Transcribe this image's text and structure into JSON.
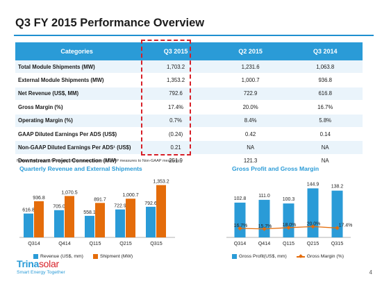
{
  "title": "Q3 FY 2015 Performance Overview",
  "table": {
    "headers": [
      "Categories",
      "Q3 2015",
      "Q2 2015",
      "Q3 2014"
    ],
    "rows": [
      [
        "Total Module Shipments (MW)",
        "1,703.2",
        "1,231.6",
        "1,063.8"
      ],
      [
        "External Module Shipments (MW)",
        "1,353.2",
        "1,000.7",
        "936.8"
      ],
      [
        "Net Revenue (US$, MM)",
        "792.6",
        "722.9",
        "616.8"
      ],
      [
        "Gross Margin (%)",
        "17.4%",
        "20.0%",
        "16.7%"
      ],
      [
        "Operating Margin  (%)",
        "0.7%",
        "8.4%",
        "5.8%"
      ],
      [
        "GAAP Diluted Earnings Per ADS (US$)",
        "(0.24)",
        "0.42",
        "0.14"
      ],
      [
        "Non-GAAP Diluted Earnings Per ADS¹ (US$)",
        "0.21",
        "NA",
        "NA"
      ],
      [
        "Downstream Project Connection (MW)",
        "251.9",
        "121.3",
        "NA"
      ]
    ]
  },
  "footnote": "Notes¹: See page 3 for details of the reconciliation of GAAP measures to Non-GAAP measures.",
  "chart_data": [
    {
      "type": "bar",
      "title": "Quarterly Revenue and External Shipments",
      "categories": [
        "Q314",
        "Q414",
        "Q115",
        "Q215",
        "Q315"
      ],
      "series": [
        {
          "name": "Revenue (US$, mm)",
          "values": [
            616.8,
            705.0,
            558.1,
            722.9,
            792.6
          ],
          "labels": [
            "616.8",
            "705.0",
            "558.1",
            "722.9",
            "792.6"
          ],
          "color": "#2a9bd7"
        },
        {
          "name": "Shipment (MW)",
          "values": [
            936.8,
            1070.5,
            891.7,
            1000.7,
            1353.2
          ],
          "labels": [
            "936.8",
            "1,070.5",
            "891.7",
            "1,000.7",
            "1,353.2"
          ],
          "color": "#e46c0a"
        }
      ],
      "legend": "bottom"
    },
    {
      "type": "bar",
      "title": "Gross Profit and Gross Margin",
      "categories": [
        "Q314",
        "Q414",
        "Q115",
        "Q215",
        "Q315"
      ],
      "series": [
        {
          "name": "Gross Profit(US$, mm)",
          "values": [
            102.8,
            111.0,
            100.3,
            144.9,
            138.2
          ],
          "labels": [
            "102.8",
            "111.0",
            "100.3",
            "144.9",
            "138.2"
          ],
          "color": "#2a9bd7"
        },
        {
          "name": "Gross Margin (%)",
          "kind": "line",
          "values": [
            16.7,
            15.7,
            18.0,
            20.0,
            17.4
          ],
          "labels": [
            "16.7%",
            "15.7%",
            "18.0%",
            "20.0%",
            "17.4%"
          ],
          "color": "#e46c0a"
        }
      ],
      "legend": "bottom"
    }
  ],
  "logo": {
    "brand_a": "Trina",
    "brand_b": "solar",
    "tagline": "Smart Energy Together"
  },
  "page_number": "4",
  "colors": {
    "accent": "#2a9bd7",
    "secondary": "#e46c0a",
    "highlight": "#d71f27"
  }
}
